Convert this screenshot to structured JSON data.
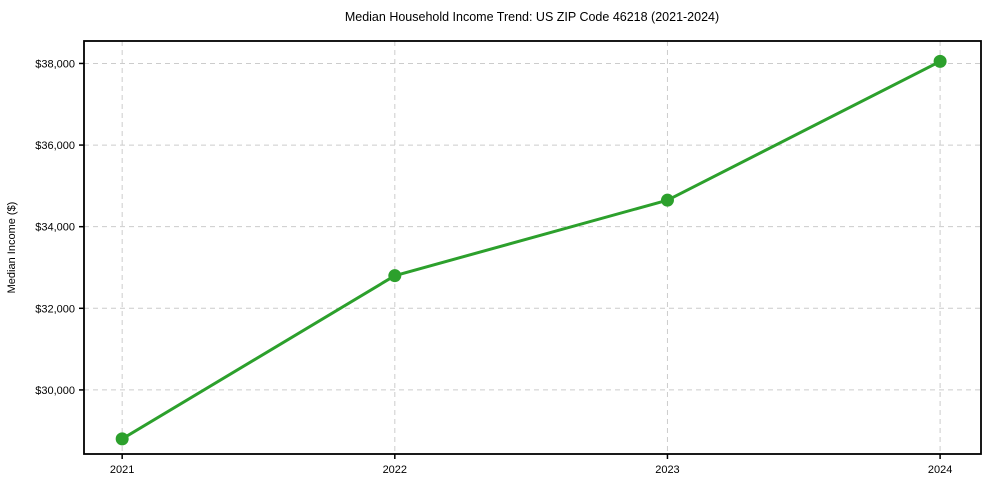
{
  "page": {
    "background": "#ffffff"
  },
  "chart_data": {
    "type": "line",
    "title": "Median Household Income Trend: US ZIP Code 46218 (2021-2024)",
    "xlabel": "",
    "ylabel": "Median Income ($)",
    "x": [
      2021,
      2022,
      2023,
      2024
    ],
    "series": [
      {
        "name": "Median Household Income",
        "values": [
          28800,
          32800,
          34650,
          38050
        ]
      }
    ],
    "x_ticks": [
      {
        "value": 2021,
        "label": "2021"
      },
      {
        "value": 2022,
        "label": "2022"
      },
      {
        "value": 2023,
        "label": "2023"
      },
      {
        "value": 2024,
        "label": "2024"
      }
    ],
    "y_ticks": [
      {
        "value": 30000,
        "label": "$30,000"
      },
      {
        "value": 32000,
        "label": "$32,000"
      },
      {
        "value": 34000,
        "label": "$34,000"
      },
      {
        "value": 36000,
        "label": "$36,000"
      },
      {
        "value": 38000,
        "label": "$38,000"
      }
    ],
    "xlim": [
      2020.86,
      2024.15
    ],
    "ylim": [
      28430,
      38550
    ],
    "grid": "both",
    "grid_style": "dashed",
    "legend": "none",
    "colors": {
      "line": "#2ca02c",
      "marker": "#2ca02c",
      "grid": "#cccccc",
      "spine": "#000000",
      "text": "#000000",
      "background": "#ffffff"
    },
    "marker": "circle",
    "marker_radius": 6.5,
    "line_width": 3
  }
}
